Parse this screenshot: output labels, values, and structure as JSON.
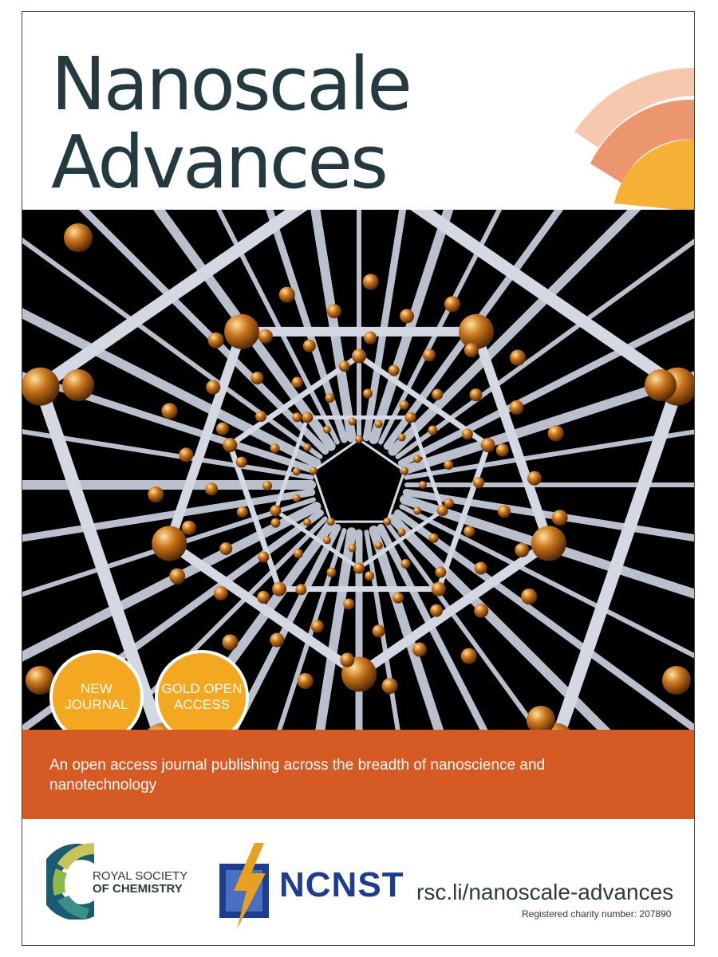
{
  "journal": {
    "title_line1": "Nanoscale",
    "title_line2": "Advances"
  },
  "badges": {
    "badge1": [
      "NEW",
      "JOURNAL"
    ],
    "badge2": [
      "GOLD OPEN",
      "ACCESS"
    ]
  },
  "tagline": "An open access journal publishing across the breadth of nanoscience and nanotechnology",
  "logos": {
    "rsc": [
      "ROYAL SOCIETY",
      "OF CHEMISTRY"
    ],
    "ncnst": "NCNST"
  },
  "footer": {
    "url": "rsc.li/nanoscale-advances",
    "charity": "Registered charity number: 207890"
  },
  "colors": {
    "title": "#243a40",
    "band": "#d65a24",
    "badge": "#f4a720",
    "ncnst_blue": "#1f3d8f"
  }
}
